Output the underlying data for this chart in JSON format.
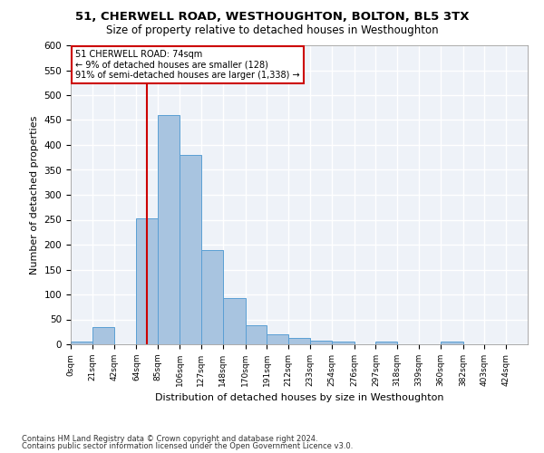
{
  "title": "51, CHERWELL ROAD, WESTHOUGHTON, BOLTON, BL5 3TX",
  "subtitle": "Size of property relative to detached houses in Westhoughton",
  "xlabel": "Distribution of detached houses by size in Westhoughton",
  "ylabel": "Number of detached properties",
  "footnote1": "Contains HM Land Registry data © Crown copyright and database right 2024.",
  "footnote2": "Contains public sector information licensed under the Open Government Licence v3.0.",
  "annotation_title": "51 CHERWELL ROAD: 74sqm",
  "annotation_line1": "← 9% of detached houses are smaller (128)",
  "annotation_line2": "91% of semi-detached houses are larger (1,338) →",
  "bar_values": [
    5,
    35,
    0,
    253,
    460,
    380,
    190,
    92,
    38,
    20,
    13,
    7,
    6,
    0,
    6,
    0,
    0,
    5
  ],
  "bar_color": "#a8c4e0",
  "bar_edge_color": "#5a9fd4",
  "background_color": "#eef2f8",
  "grid_color": "#ffffff",
  "vline_x": 74,
  "vline_color": "#cc0000",
  "annotation_box_color": "#cc0000",
  "ylim": [
    0,
    600
  ],
  "yticks": [
    0,
    50,
    100,
    150,
    200,
    250,
    300,
    350,
    400,
    450,
    500,
    550,
    600
  ],
  "bin_edges": [
    0,
    21,
    42,
    64,
    85,
    106,
    127,
    148,
    170,
    191,
    212,
    233,
    254,
    276,
    297,
    318,
    339,
    360,
    382
  ],
  "x_labels": [
    "0sqm",
    "21sqm",
    "42sqm",
    "64sqm",
    "85sqm",
    "106sqm",
    "127sqm",
    "148sqm",
    "170sqm",
    "191sqm",
    "212sqm",
    "233sqm",
    "254sqm",
    "276sqm",
    "297sqm",
    "318sqm",
    "339sqm",
    "360sqm",
    "382sqm",
    "403sqm",
    "424sqm"
  ]
}
